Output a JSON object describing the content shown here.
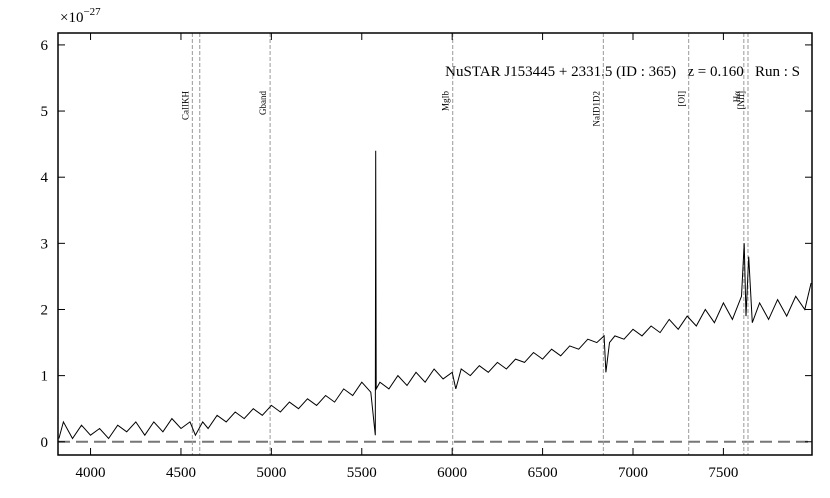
{
  "chart_data": {
    "type": "line",
    "annotation": "NuSTAR J153445 + 2331.5 (ID : 365)   z = 0.160   Run : S",
    "y_offset_label": "×10",
    "y_offset_exponent": "−27",
    "x": [
      3825,
      3850,
      3900,
      3950,
      4000,
      4050,
      4100,
      4150,
      4200,
      4250,
      4300,
      4350,
      4400,
      4450,
      4500,
      4550,
      4580,
      4620,
      4650,
      4700,
      4750,
      4800,
      4850,
      4900,
      4950,
      5000,
      5050,
      5100,
      5150,
      5200,
      5250,
      5300,
      5350,
      5400,
      5450,
      5500,
      5550,
      5575,
      5577,
      5580,
      5600,
      5650,
      5700,
      5750,
      5800,
      5850,
      5900,
      5950,
      6000,
      6020,
      6050,
      6100,
      6150,
      6200,
      6250,
      6300,
      6350,
      6400,
      6450,
      6500,
      6550,
      6600,
      6650,
      6700,
      6750,
      6800,
      6840,
      6850,
      6870,
      6900,
      6950,
      7000,
      7050,
      7100,
      7150,
      7200,
      7250,
      7300,
      7350,
      7400,
      7450,
      7500,
      7550,
      7600,
      7615,
      7625,
      7640,
      7660,
      7700,
      7750,
      7800,
      7850,
      7900,
      7950,
      7985
    ],
    "values": [
      0.05,
      0.3,
      0.05,
      0.25,
      0.1,
      0.2,
      0.05,
      0.25,
      0.15,
      0.3,
      0.1,
      0.3,
      0.15,
      0.35,
      0.2,
      0.3,
      0.1,
      0.3,
      0.2,
      0.4,
      0.3,
      0.45,
      0.35,
      0.5,
      0.4,
      0.55,
      0.45,
      0.6,
      0.5,
      0.65,
      0.55,
      0.7,
      0.6,
      0.8,
      0.7,
      0.9,
      0.75,
      0.1,
      4.4,
      0.8,
      0.9,
      0.8,
      1.0,
      0.85,
      1.05,
      0.9,
      1.1,
      0.95,
      1.05,
      0.8,
      1.1,
      1.0,
      1.15,
      1.05,
      1.2,
      1.1,
      1.25,
      1.2,
      1.35,
      1.25,
      1.4,
      1.3,
      1.45,
      1.4,
      1.55,
      1.5,
      1.6,
      1.05,
      1.5,
      1.6,
      1.55,
      1.7,
      1.6,
      1.75,
      1.65,
      1.85,
      1.7,
      1.9,
      1.75,
      2.0,
      1.8,
      2.1,
      1.85,
      2.2,
      3.0,
      1.9,
      2.8,
      1.8,
      2.1,
      1.85,
      2.15,
      1.9,
      2.2,
      2.0,
      2.4
    ],
    "color": "#000000",
    "lines": [
      {
        "label": "CaIIKH",
        "x": 4563
      },
      {
        "label": null,
        "x": 4604
      },
      {
        "label": "Gband",
        "x": 4993
      },
      {
        "label": "MgIb",
        "x": 6003
      },
      {
        "label": "NaID1D2",
        "x": 6836
      },
      {
        "label": "[OI]",
        "x": 7308
      },
      {
        "label": "Hα",
        "x": 7613
      },
      {
        "label": "[NII]",
        "x": 7636
      }
    ],
    "hline": 0,
    "xlim": [
      3820,
      7990
    ],
    "ylim": [
      -0.2,
      6.18
    ],
    "xticks": [
      4000,
      4500,
      5000,
      5500,
      6000,
      6500,
      7000,
      7500
    ],
    "yticks": [
      0,
      1,
      2,
      3,
      4,
      5,
      6
    ]
  }
}
